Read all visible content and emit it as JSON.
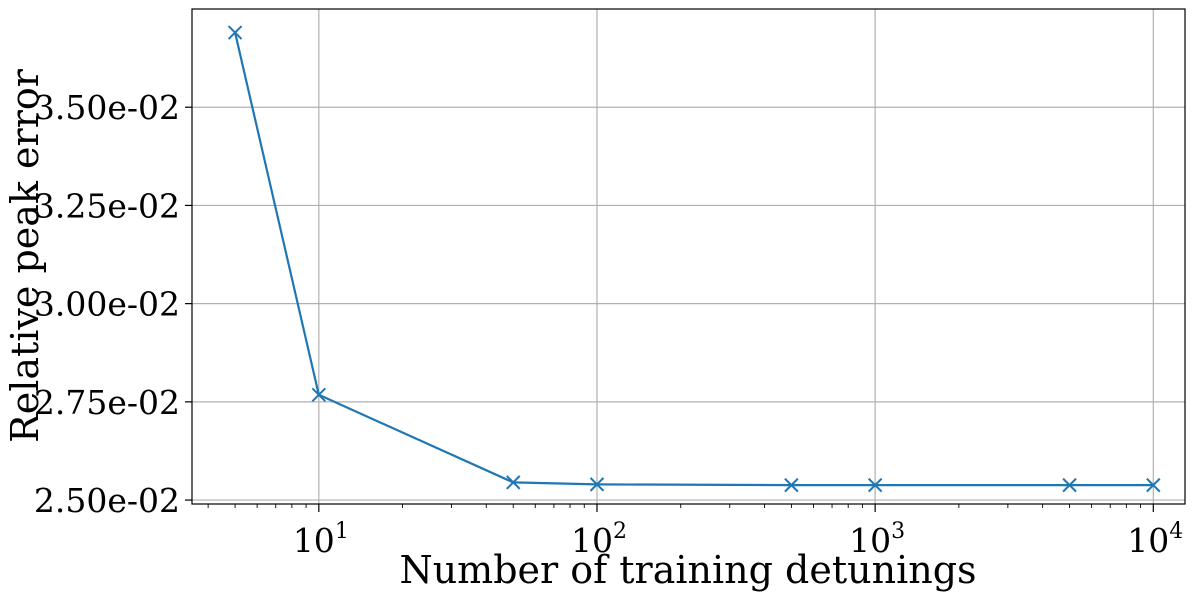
{
  "chart_data": {
    "type": "line",
    "xlabel": "Number of training detunings",
    "ylabel": "Relative peak error",
    "x_scale": "log",
    "xlim": [
      3.5,
      13000
    ],
    "ylim": [
      0.0249,
      0.0375
    ],
    "grid": true,
    "x_ticks": [
      {
        "value": 10,
        "base": "10",
        "exp": "1"
      },
      {
        "value": 100,
        "base": "10",
        "exp": "2"
      },
      {
        "value": 1000,
        "base": "10",
        "exp": "3"
      },
      {
        "value": 10000,
        "base": "10",
        "exp": "4"
      }
    ],
    "y_ticks": [
      {
        "value": 0.025,
        "label": "2.50e-02"
      },
      {
        "value": 0.0275,
        "label": "2.75e-02"
      },
      {
        "value": 0.03,
        "label": "3.00e-02"
      },
      {
        "value": 0.0325,
        "label": "3.25e-02"
      },
      {
        "value": 0.035,
        "label": "3.50e-02"
      }
    ],
    "series": [
      {
        "color": "#1f77b4",
        "marker": "x",
        "x": [
          5,
          10,
          50,
          100,
          500,
          1000,
          5000,
          10000
        ],
        "y": [
          0.0369,
          0.02768,
          0.02545,
          0.0254,
          0.02538,
          0.02538,
          0.02538,
          0.02538
        ]
      }
    ]
  }
}
